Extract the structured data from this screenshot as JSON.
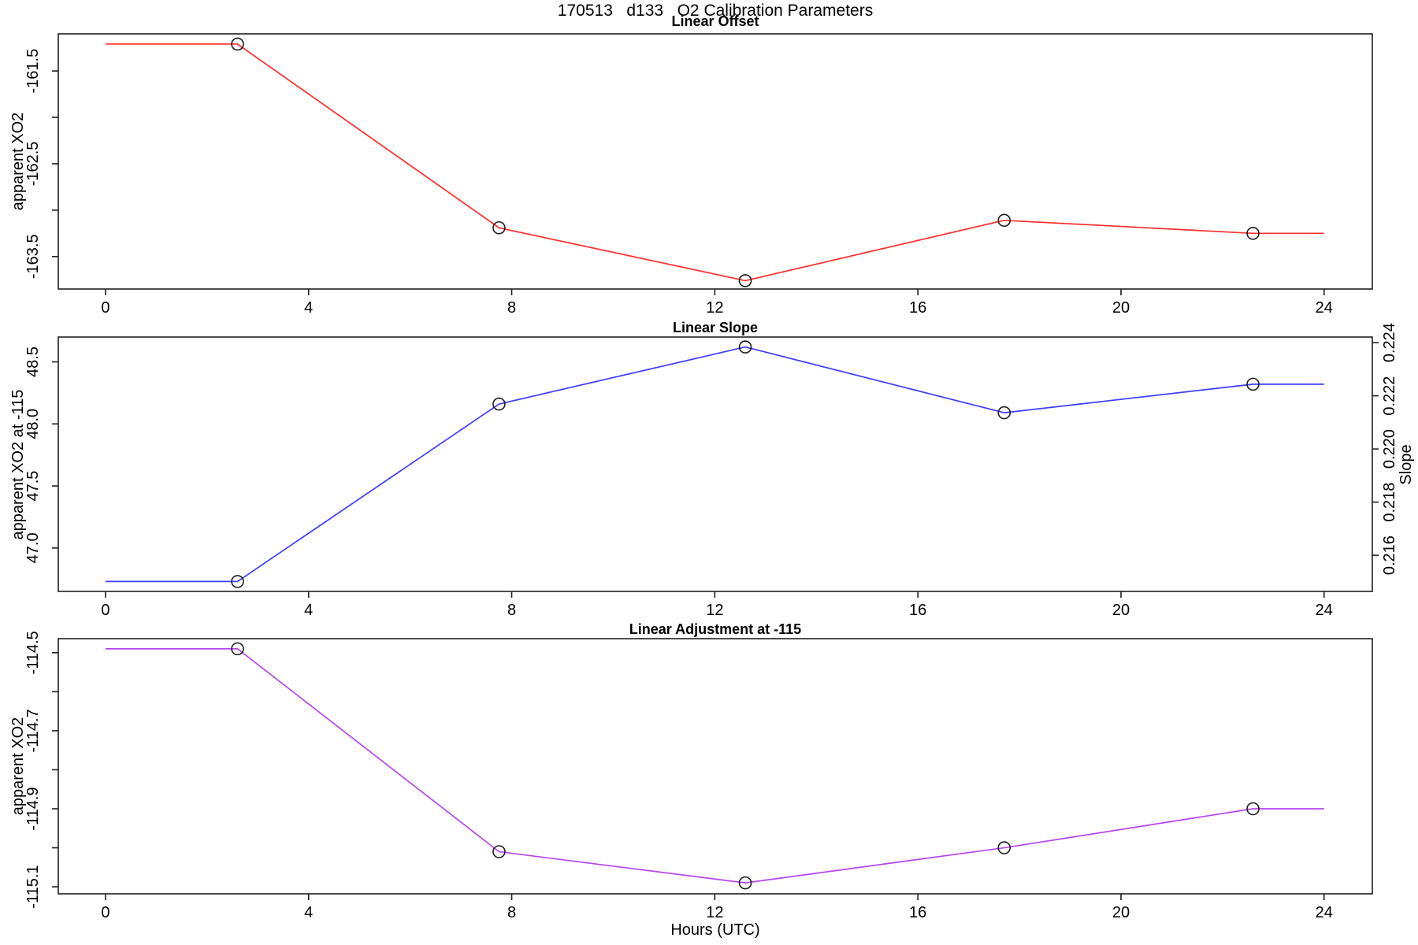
{
  "header": {
    "title": "170513   d133   O2 Calibration Parameters"
  },
  "x_axis": {
    "label": "Hours (UTC)",
    "xlim": [
      -0.93,
      24.95
    ],
    "ticks": [
      {
        "value": 0,
        "label": "0"
      },
      {
        "value": 4,
        "label": "4"
      },
      {
        "value": 8,
        "label": "8"
      },
      {
        "value": 12,
        "label": "12"
      },
      {
        "value": 16,
        "label": "16"
      },
      {
        "value": 20,
        "label": "20"
      },
      {
        "value": 24,
        "label": "24"
      }
    ]
  },
  "chart_data": [
    {
      "type": "line",
      "title": "Linear Offset",
      "ylabel": "apparent XO2",
      "ylim": [
        -163.85,
        -161.1
      ],
      "grid": false,
      "yticks": [
        {
          "value": -161.5,
          "label": "-161.5"
        },
        {
          "value": -162.0,
          "label": ""
        },
        {
          "value": -162.5,
          "label": "-162.5"
        },
        {
          "value": -163.0,
          "label": ""
        },
        {
          "value": -163.5,
          "label": "-163.5"
        }
      ],
      "series": [
        {
          "name": "linear-offset",
          "color": "#ff2d2d",
          "x": [
            0,
            2.6,
            7.75,
            12.6,
            17.7,
            22.6,
            24
          ],
          "y": [
            -161.21,
            -161.21,
            -163.19,
            -163.76,
            -163.11,
            -163.25,
            -163.25
          ],
          "markers": [
            1,
            2,
            3,
            4,
            5
          ]
        }
      ]
    },
    {
      "type": "line",
      "title": "Linear Slope",
      "ylabel": "apparent XO2 at -115",
      "y2label": "Slope",
      "ylim": [
        46.65,
        48.7
      ],
      "y2lim": [
        0.21464,
        0.22421
      ],
      "grid": false,
      "yticks": [
        {
          "value": 47.0,
          "label": "47.0"
        },
        {
          "value": 47.5,
          "label": "47.5"
        },
        {
          "value": 48.0,
          "label": "48.0"
        },
        {
          "value": 48.5,
          "label": "48.5"
        }
      ],
      "y2ticks": [
        {
          "value": 0.216,
          "label": "0.216"
        },
        {
          "value": 0.218,
          "label": "0.218"
        },
        {
          "value": 0.22,
          "label": "0.220"
        },
        {
          "value": 0.222,
          "label": "0.222"
        },
        {
          "value": 0.224,
          "label": "0.224"
        }
      ],
      "series": [
        {
          "name": "linear-slope",
          "color": "#3c3cff",
          "x": [
            0,
            2.6,
            7.75,
            12.6,
            17.7,
            22.6,
            24
          ],
          "y": [
            46.73,
            46.73,
            48.16,
            48.62,
            48.09,
            48.32,
            48.32
          ],
          "markers": [
            1,
            2,
            3,
            4,
            5
          ]
        }
      ]
    },
    {
      "type": "line",
      "title": "Linear Adjustment at -115",
      "ylabel": "apparent XO2",
      "ylim": [
        -115.118,
        -114.464
      ],
      "grid": false,
      "yticks": [
        {
          "value": -114.5,
          "label": "-114.5"
        },
        {
          "value": -114.6,
          "label": ""
        },
        {
          "value": -114.7,
          "label": "-114.7"
        },
        {
          "value": -114.8,
          "label": ""
        },
        {
          "value": -114.9,
          "label": "-114.9"
        },
        {
          "value": -115.0,
          "label": ""
        },
        {
          "value": -115.1,
          "label": "-115.1"
        }
      ],
      "series": [
        {
          "name": "linear-adjustment-at--115",
          "color": "#b843f0",
          "x": [
            0,
            2.6,
            7.75,
            12.6,
            17.7,
            22.6,
            24
          ],
          "y": [
            -114.49,
            -114.49,
            -115.01,
            -115.09,
            -115.0,
            -114.9,
            -114.9
          ],
          "markers": [
            1,
            2,
            3,
            4,
            5
          ]
        }
      ]
    }
  ]
}
